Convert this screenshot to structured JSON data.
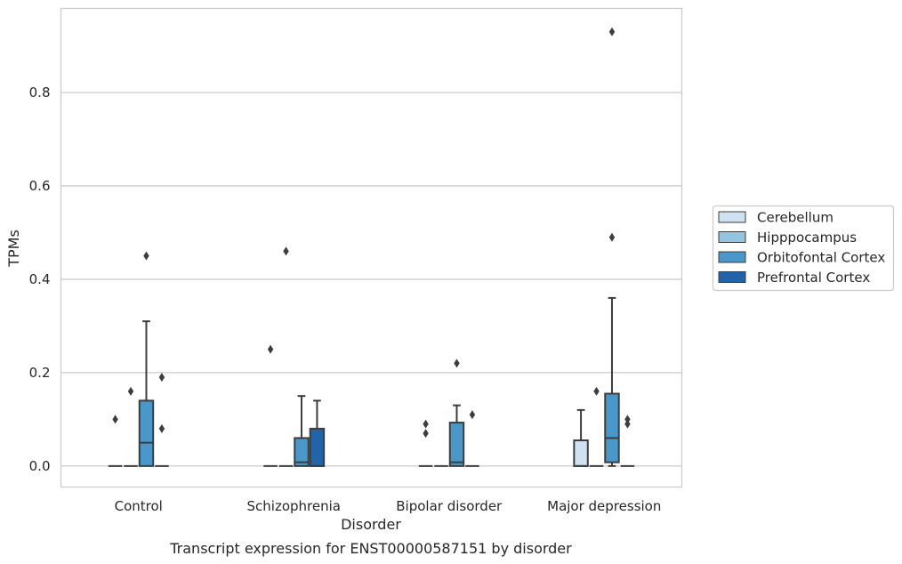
{
  "chart_data": {
    "type": "box",
    "caption": "Transcript expression for ENST00000587151 by disorder",
    "xlabel": "Disorder",
    "ylabel": "TPMs",
    "ylim": [
      -0.045,
      0.98
    ],
    "yticks": [
      "0.0",
      "0.2",
      "0.4",
      "0.6",
      "0.8"
    ],
    "ytick_values": [
      0.0,
      0.2,
      0.4,
      0.6,
      0.8
    ],
    "grid": "horizontal",
    "legend_position": "right",
    "categories": [
      "Control",
      "Schizophrenia",
      "Bipolar disorder",
      "Major depression"
    ],
    "series": [
      {
        "name": "Cerebellum",
        "color": "#d0e1f2",
        "boxes": [
          {
            "min": 0,
            "q1": 0,
            "median": 0,
            "q3": 0,
            "max": 0,
            "outliers": [
              0.1
            ]
          },
          {
            "min": 0,
            "q1": 0,
            "median": 0,
            "q3": 0,
            "max": 0,
            "outliers": [
              0.25
            ]
          },
          {
            "min": 0,
            "q1": 0,
            "median": 0,
            "q3": 0,
            "max": 0,
            "outliers": [
              0.09,
              0.07
            ]
          },
          {
            "min": 0,
            "q1": 0,
            "median": 0,
            "q3": 0.055,
            "max": 0.12,
            "outliers": []
          }
        ]
      },
      {
        "name": "Hipppocampus",
        "color": "#94c4df",
        "boxes": [
          {
            "min": 0,
            "q1": 0,
            "median": 0,
            "q3": 0,
            "max": 0,
            "outliers": [
              0.16
            ]
          },
          {
            "min": 0,
            "q1": 0,
            "median": 0,
            "q3": 0,
            "max": 0,
            "outliers": [
              0.46
            ]
          },
          {
            "min": 0,
            "q1": 0,
            "median": 0,
            "q3": 0,
            "max": 0,
            "outliers": []
          },
          {
            "min": 0,
            "q1": 0,
            "median": 0,
            "q3": 0,
            "max": 0,
            "outliers": [
              0.16
            ]
          }
        ]
      },
      {
        "name": "Orbitofontal Cortex",
        "color": "#4a98c9",
        "boxes": [
          {
            "min": 0,
            "q1": 0,
            "median": 0.05,
            "q3": 0.14,
            "max": 0.31,
            "outliers": [
              0.45
            ]
          },
          {
            "min": 0,
            "q1": 0,
            "median": 0.008,
            "q3": 0.06,
            "max": 0.15,
            "outliers": []
          },
          {
            "min": 0,
            "q1": 0,
            "median": 0.008,
            "q3": 0.093,
            "max": 0.13,
            "outliers": [
              0.22
            ]
          },
          {
            "min": 0,
            "q1": 0.008,
            "median": 0.06,
            "q3": 0.155,
            "max": 0.36,
            "outliers": [
              0.93,
              0.49
            ]
          }
        ]
      },
      {
        "name": "Prefrontal Cortex",
        "color": "#2363a8",
        "boxes": [
          {
            "min": 0,
            "q1": 0,
            "median": 0,
            "q3": 0,
            "max": 0,
            "outliers": [
              0.19,
              0.08
            ]
          },
          {
            "min": 0,
            "q1": 0,
            "median": 0,
            "q3": 0.08,
            "max": 0.14,
            "outliers": []
          },
          {
            "min": 0,
            "q1": 0,
            "median": 0,
            "q3": 0,
            "max": 0,
            "outliers": [
              0.11
            ]
          },
          {
            "min": 0,
            "q1": 0,
            "median": 0,
            "q3": 0,
            "max": 0,
            "outliers": [
              0.1,
              0.09
            ]
          }
        ]
      }
    ]
  }
}
